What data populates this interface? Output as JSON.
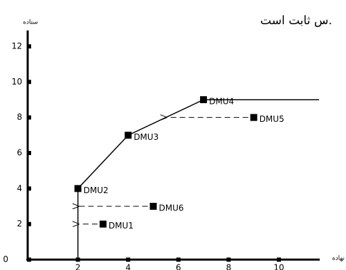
{
  "chart_data": {
    "type": "scatter",
    "title": "س ثابت است.",
    "y_label": "ستاده",
    "x_label": "نهاده",
    "x": [
      3,
      2,
      4,
      7,
      9,
      5
    ],
    "values": [
      2,
      4,
      7,
      9,
      8,
      3
    ],
    "labels": [
      "DMU1",
      "DMU2",
      "DMU3",
      "DMU4",
      "DMU5",
      "DMU6"
    ],
    "color": "#000000",
    "xlim": [
      0,
      11.6
    ],
    "ylim": [
      0,
      12
    ],
    "xticks": [
      2,
      4,
      6,
      8,
      10
    ],
    "yticks": [
      0,
      2,
      4,
      6,
      8,
      10,
      12
    ]
  }
}
